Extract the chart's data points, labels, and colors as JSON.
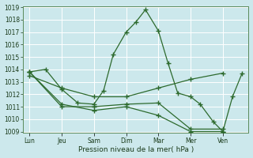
{
  "bg_color": "#cce8ec",
  "grid_color": "#ffffff",
  "line_color": "#2d6a2d",
  "xlabel": "Pression niveau de la mer( hPa )",
  "ylim": [
    1009,
    1019
  ],
  "yticks": [
    1009,
    1010,
    1011,
    1012,
    1013,
    1014,
    1015,
    1016,
    1017,
    1018,
    1019
  ],
  "xtick_labels": [
    "Lun",
    "Jeu",
    "Sam",
    "Dim",
    "Mar",
    "Mer",
    "Ven"
  ],
  "xtick_positions": [
    0,
    1,
    2,
    3,
    4,
    5,
    6
  ],
  "series": [
    {
      "x": [
        0,
        0.5,
        1,
        1.5,
        2,
        2.3,
        2.6,
        3.0,
        3.3,
        3.6,
        4.0,
        4.3,
        4.6,
        5.0,
        5.3,
        5.7,
        6.0,
        6.3,
        6.6
      ],
      "y": [
        1013.8,
        1014.0,
        1012.4,
        1011.3,
        1011.2,
        1012.3,
        1015.2,
        1017.0,
        1017.8,
        1018.8,
        1017.1,
        1014.5,
        1012.1,
        1011.8,
        1011.2,
        1009.8,
        1009.0,
        1011.8,
        1013.7
      ]
    },
    {
      "x": [
        0,
        1,
        2,
        3,
        4,
        5,
        6
      ],
      "y": [
        1013.5,
        1012.5,
        1011.8,
        1011.8,
        1012.5,
        1013.2,
        1013.7
      ]
    },
    {
      "x": [
        0,
        1,
        2,
        3,
        4,
        5,
        6
      ],
      "y": [
        1013.8,
        1011.0,
        1011.0,
        1011.2,
        1011.3,
        1009.2,
        1009.2
      ]
    },
    {
      "x": [
        0,
        1,
        2,
        3,
        4,
        5,
        6
      ],
      "y": [
        1013.8,
        1011.2,
        1010.7,
        1011.0,
        1010.3,
        1009.0,
        1009.0
      ]
    }
  ]
}
